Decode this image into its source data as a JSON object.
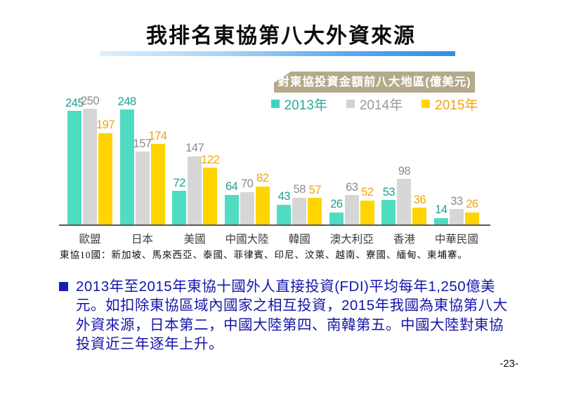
{
  "slide": {
    "title": "我排名東協第八大外資來源",
    "page_number": "-23-"
  },
  "chart": {
    "header_label": "對東協投資金額前八大地區(億美元)",
    "header_bg": "#b3aa8c",
    "note": "東協10國：新加坡、馬來西亞、泰國、菲律賓、印尼、汶萊、越南、寮國、緬甸、柬埔寨。",
    "legend": [
      {
        "label": "2013年",
        "swatch_color": "#3fd6bd",
        "text_color": "#2aa79b"
      },
      {
        "label": "2014年",
        "swatch_color": "#d2d2d2",
        "text_color": "#9a9a9a"
      },
      {
        "label": "2015年",
        "swatch_color": "#ffd400",
        "text_color": "#f2a30a"
      }
    ]
  },
  "chart_data": {
    "type": "bar",
    "title": "對東協投資金額前八大地區(億美元)",
    "categories": [
      "歐盟",
      "日本",
      "美國",
      "中國大陸",
      "韓國",
      "澳大利亞",
      "香港",
      "中華民國"
    ],
    "series": [
      {
        "name": "2013年",
        "color": "#4fdcc1",
        "label_color": "#1f9e91",
        "values": [
          245,
          248,
          72,
          64,
          43,
          26,
          53,
          14
        ]
      },
      {
        "name": "2014年",
        "color": "#d6d6d6",
        "label_color": "#8c8c8c",
        "values": [
          250,
          157,
          147,
          70,
          58,
          63,
          98,
          33
        ]
      },
      {
        "name": "2015年",
        "color": "#ffd400",
        "label_color": "#f2a30a",
        "values": [
          197,
          174,
          122,
          82,
          57,
          52,
          36,
          26
        ]
      }
    ],
    "ylim": [
      0,
      250
    ],
    "grid": false,
    "value_labels": true,
    "legend_position": "top-right",
    "xlabel": "",
    "ylabel": "億美元"
  },
  "bullet": {
    "text": "2013年至2015年東協十國外人直接投資(FDI)平均每年1,250億美元。如扣除東協區域內國家之相互投資，2015年我國為東協第八大外資來源，日本第二，中國大陸第四、南韓第五。中國大陸對東協投資近三年逐年上升。"
  }
}
